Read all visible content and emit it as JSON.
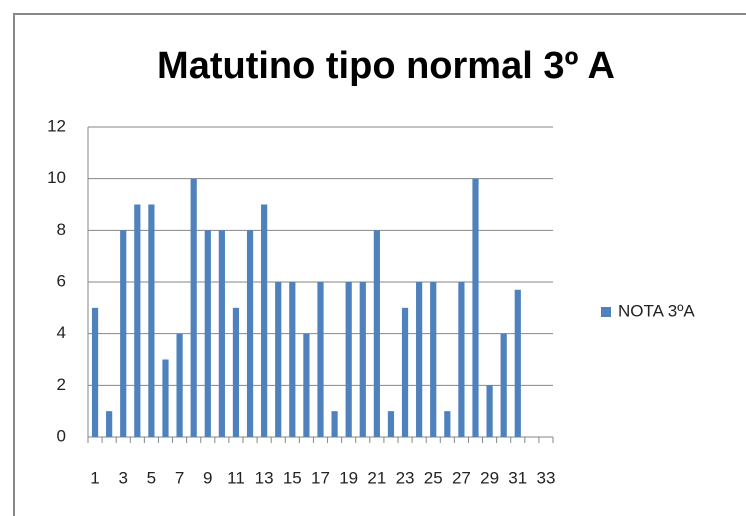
{
  "chart_data": {
    "type": "bar",
    "title": "Matutino tipo normal 3º A",
    "categories": [
      1,
      null,
      3,
      null,
      5,
      null,
      7,
      null,
      9,
      null,
      11,
      null,
      13,
      null,
      15,
      null,
      17,
      null,
      19,
      null,
      21,
      null,
      23,
      null,
      25,
      null,
      27,
      null,
      29,
      null,
      31,
      null,
      33
    ],
    "series": [
      {
        "name": "NOTA 3ºA",
        "color": "#4f81bd",
        "values": [
          5,
          1,
          8,
          9,
          9,
          3,
          4,
          10,
          8,
          8,
          5,
          8,
          9,
          6,
          6,
          4,
          6,
          1,
          6,
          6,
          8,
          1,
          5,
          6,
          6,
          1,
          6,
          10,
          2,
          4,
          5.7,
          null,
          null
        ]
      }
    ],
    "ylim": [
      0,
      12
    ],
    "yticks": [
      0,
      2,
      4,
      6,
      8,
      10,
      12
    ],
    "grid": true,
    "legend": "right"
  }
}
